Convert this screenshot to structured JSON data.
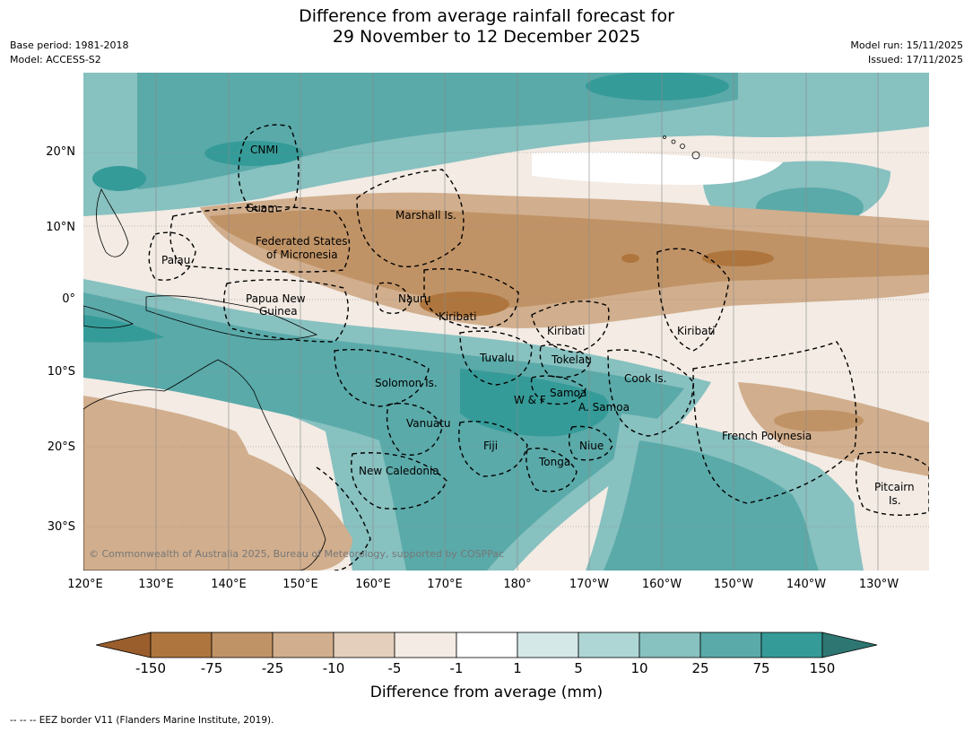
{
  "header": {
    "title_line1": "Difference from average rainfall forecast for",
    "title_line2": "29 November to 12 December 2025",
    "base_period": "Base period: 1981-2018",
    "model": "Model: ACCESS-S2",
    "model_run": "Model run: 15/11/2025",
    "issued": "Issued: 17/11/2025"
  },
  "map": {
    "lat_labels": [
      "20°N",
      "10°N",
      "0°",
      "10°S",
      "20°S",
      "30°S"
    ],
    "lon_labels": [
      "120°E",
      "130°E",
      "140°E",
      "150°E",
      "160°E",
      "170°E",
      "180°",
      "170°W",
      "160°W",
      "150°W",
      "140°W",
      "130°W"
    ],
    "regions": [
      {
        "name": "CNMI"
      },
      {
        "name": "Guam"
      },
      {
        "name": "Marshall Is."
      },
      {
        "name": "Federated States"
      },
      {
        "name": "of Micronesia"
      },
      {
        "name": "Palau"
      },
      {
        "name": "Papua New"
      },
      {
        "name": "Guinea"
      },
      {
        "name": "Nauru"
      },
      {
        "name": "Kiribati"
      },
      {
        "name": "Kiribati"
      },
      {
        "name": "Kiribati"
      },
      {
        "name": "Tuvalu"
      },
      {
        "name": "Tokelau"
      },
      {
        "name": "Cook Is."
      },
      {
        "name": "Solomon Is."
      },
      {
        "name": "W & F"
      },
      {
        "name": "Samoa"
      },
      {
        "name": "A. Samoa"
      },
      {
        "name": "Vanuatu"
      },
      {
        "name": "Fiji"
      },
      {
        "name": "Niue"
      },
      {
        "name": "Tonga"
      },
      {
        "name": "French Polynesia"
      },
      {
        "name": "New Caledonia"
      },
      {
        "name": "Pitcairn"
      },
      {
        "name": "Is."
      }
    ],
    "copyright": "© Commonwealth of Australia 2025, Bureau of Meteorology, supported by COSPPac"
  },
  "colorbar": {
    "ticks": [
      "-150",
      "-75",
      "-25",
      "-10",
      "-5",
      "-1",
      "1",
      "5",
      "10",
      "25",
      "75",
      "150"
    ],
    "colors": [
      "#9a5d2c",
      "#ae763e",
      "#c09366",
      "#d1ae8d",
      "#e3cfbb",
      "#f3ebe4",
      "#ffffff",
      "#d4e8e7",
      "#aed6d5",
      "#87c1c0",
      "#5aaaa9",
      "#359b98",
      "#2e7672"
    ],
    "label": "Difference from average (mm)"
  },
  "footer": {
    "legend": "-- -- -- EEZ border V11 (Flanders Marine Institute, 2019)."
  }
}
